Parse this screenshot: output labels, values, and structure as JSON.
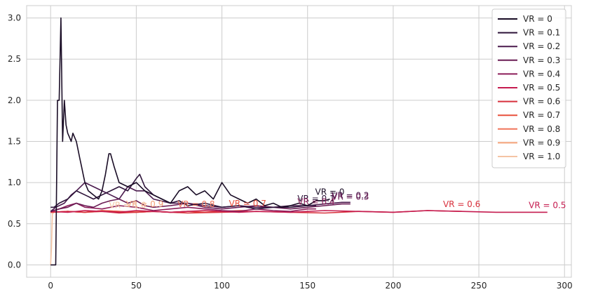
{
  "chart_data": {
    "type": "line",
    "title": "",
    "xlabel": "",
    "ylabel": "",
    "xlim": [
      -14,
      304
    ],
    "ylim": [
      -0.15,
      3.15
    ],
    "grid": true,
    "legend_placement": "top-right",
    "x_ticks": [
      0,
      50,
      100,
      150,
      200,
      250,
      300
    ],
    "y_ticks": [
      0.0,
      0.5,
      1.0,
      1.5,
      2.0,
      2.5,
      3.0
    ],
    "x_tick_labels": [
      "0",
      "50",
      "100",
      "150",
      "200",
      "250",
      "300"
    ],
    "y_tick_labels": [
      "0.0",
      "0.5",
      "1.0",
      "1.5",
      "2.0",
      "2.5",
      "3.0"
    ],
    "series": [
      {
        "name": "VR = 0",
        "color": "#1a0d26",
        "end_label": "VR = 0",
        "x": [
          0,
          3,
          4,
          5,
          6,
          7,
          8,
          9,
          10,
          11,
          12,
          13,
          14,
          15,
          16,
          17,
          18,
          19,
          20,
          22,
          25,
          28,
          30,
          32,
          34,
          35,
          37,
          40,
          45,
          50,
          55,
          60,
          65,
          70,
          75,
          80,
          85,
          90,
          95,
          100,
          105,
          110,
          115,
          120,
          125,
          130,
          135,
          140,
          145,
          150,
          155,
          160,
          163
        ],
        "y": [
          0.0,
          0.0,
          2.0,
          2.0,
          3.0,
          1.5,
          2.0,
          1.7,
          1.6,
          1.55,
          1.5,
          1.6,
          1.55,
          1.5,
          1.4,
          1.3,
          1.2,
          1.1,
          1.0,
          0.9,
          0.85,
          0.8,
          0.9,
          1.1,
          1.35,
          1.35,
          1.2,
          1.0,
          0.95,
          1.0,
          0.9,
          0.85,
          0.8,
          0.75,
          0.9,
          0.95,
          0.85,
          0.9,
          0.8,
          1.0,
          0.85,
          0.8,
          0.75,
          0.8,
          0.72,
          0.75,
          0.7,
          0.72,
          0.75,
          0.72,
          0.78,
          0.78,
          0.8
        ]
      },
      {
        "name": "VR = 0.1",
        "color": "#2d1339",
        "end_label": "VR = 0.1",
        "x": [
          0,
          2,
          5,
          8,
          10,
          15,
          20,
          25,
          30,
          35,
          40,
          45,
          50,
          52,
          55,
          60,
          65,
          70,
          75,
          80,
          90,
          100,
          110,
          120,
          130,
          140,
          150,
          155
        ],
        "y": [
          0.7,
          0.7,
          0.75,
          0.78,
          0.8,
          0.9,
          0.85,
          0.8,
          0.85,
          0.9,
          0.95,
          0.9,
          1.05,
          1.1,
          0.95,
          0.85,
          0.8,
          0.75,
          0.78,
          0.72,
          0.75,
          0.7,
          0.72,
          0.68,
          0.7,
          0.7,
          0.72,
          0.72
        ]
      },
      {
        "name": "VR = 0.2",
        "color": "#4a1a4d",
        "end_label": "VR = 0.2",
        "x": [
          0,
          3,
          5,
          8,
          10,
          12,
          15,
          20,
          25,
          30,
          35,
          40,
          45,
          50,
          55,
          60,
          70,
          80,
          90,
          100,
          110,
          120,
          130,
          140,
          150,
          160,
          170,
          175
        ],
        "y": [
          0.65,
          0.7,
          0.72,
          0.75,
          0.8,
          0.85,
          0.9,
          1.0,
          0.95,
          0.9,
          0.85,
          0.8,
          0.95,
          0.9,
          0.9,
          0.8,
          0.75,
          0.75,
          0.72,
          0.7,
          0.72,
          0.7,
          0.7,
          0.72,
          0.72,
          0.74,
          0.76,
          0.76
        ]
      },
      {
        "name": "VR = 0.3",
        "color": "#6b1d55",
        "end_label": "VR = 0.3",
        "x": [
          0,
          5,
          10,
          15,
          20,
          25,
          30,
          35,
          40,
          45,
          50,
          55,
          60,
          70,
          80,
          90,
          100,
          110,
          120,
          130,
          140,
          150,
          160,
          170,
          175
        ],
        "y": [
          0.65,
          0.68,
          0.7,
          0.75,
          0.72,
          0.7,
          0.75,
          0.78,
          0.8,
          0.75,
          0.78,
          0.72,
          0.7,
          0.72,
          0.75,
          0.7,
          0.68,
          0.7,
          0.72,
          0.7,
          0.68,
          0.7,
          0.72,
          0.74,
          0.74
        ]
      },
      {
        "name": "VR = 0.4",
        "color": "#8c1d5a",
        "end_label": "VR = 0.4",
        "x": [
          0,
          5,
          10,
          15,
          20,
          30,
          40,
          50,
          60,
          70,
          80,
          90,
          100,
          110,
          120,
          130,
          140,
          150,
          155
        ],
        "y": [
          0.65,
          0.68,
          0.72,
          0.75,
          0.7,
          0.68,
          0.72,
          0.7,
          0.66,
          0.68,
          0.7,
          0.68,
          0.66,
          0.65,
          0.68,
          0.66,
          0.65,
          0.68,
          0.68
        ]
      },
      {
        "name": "VR = 0.5",
        "color": "#c51b4f",
        "end_label": "VR = 0.5",
        "x": [
          0,
          10,
          20,
          30,
          40,
          50,
          60,
          70,
          80,
          90,
          100,
          110,
          120,
          140,
          160,
          180,
          200,
          220,
          240,
          260,
          280,
          290
        ],
        "y": [
          0.65,
          0.64,
          0.66,
          0.65,
          0.64,
          0.66,
          0.65,
          0.64,
          0.65,
          0.66,
          0.65,
          0.64,
          0.65,
          0.64,
          0.66,
          0.65,
          0.64,
          0.66,
          0.65,
          0.64,
          0.64,
          0.64
        ]
      },
      {
        "name": "VR = 0.6",
        "color": "#d8313d",
        "end_label": "VR = 0.6",
        "x": [
          0,
          10,
          20,
          30,
          40,
          50,
          60,
          80,
          100,
          120,
          140,
          160,
          180,
          200,
          220,
          240
        ],
        "y": [
          0.64,
          0.65,
          0.64,
          0.65,
          0.63,
          0.64,
          0.65,
          0.63,
          0.64,
          0.65,
          0.64,
          0.63,
          0.65,
          0.64,
          0.66,
          0.65
        ]
      },
      {
        "name": "VR = 0.7",
        "color": "#e8503c",
        "end_label": "VR = 0.7",
        "x": [
          0,
          10,
          20,
          30,
          40,
          50,
          60,
          70,
          80,
          90,
          100,
          110,
          115
        ],
        "y": [
          0.64,
          0.65,
          0.64,
          0.66,
          0.65,
          0.64,
          0.65,
          0.64,
          0.65,
          0.64,
          0.65,
          0.66,
          0.66
        ]
      },
      {
        "name": "VR = 0.8",
        "color": "#f0755a",
        "end_label": "VR = 0.8",
        "x": [
          0,
          10,
          20,
          30,
          40,
          50,
          60,
          70,
          80,
          85
        ],
        "y": [
          0.64,
          0.65,
          0.64,
          0.66,
          0.65,
          0.64,
          0.65,
          0.64,
          0.65,
          0.65
        ]
      },
      {
        "name": "VR = 0.9",
        "color": "#f3a077",
        "end_label": "VR = 0.9",
        "x": [
          0,
          10,
          20,
          30,
          40,
          50,
          55
        ],
        "y": [
          0.64,
          0.65,
          0.64,
          0.65,
          0.64,
          0.65,
          0.65
        ]
      },
      {
        "name": "VR = 1.0",
        "color": "#f5c4a4",
        "end_label": "VR = 1.0",
        "x": [
          0,
          0.5,
          1,
          2,
          10,
          20,
          30,
          40,
          45
        ],
        "y": [
          0.0,
          0.2,
          0.62,
          0.64,
          0.65,
          0.64,
          0.65,
          0.64,
          0.64
        ]
      }
    ]
  }
}
